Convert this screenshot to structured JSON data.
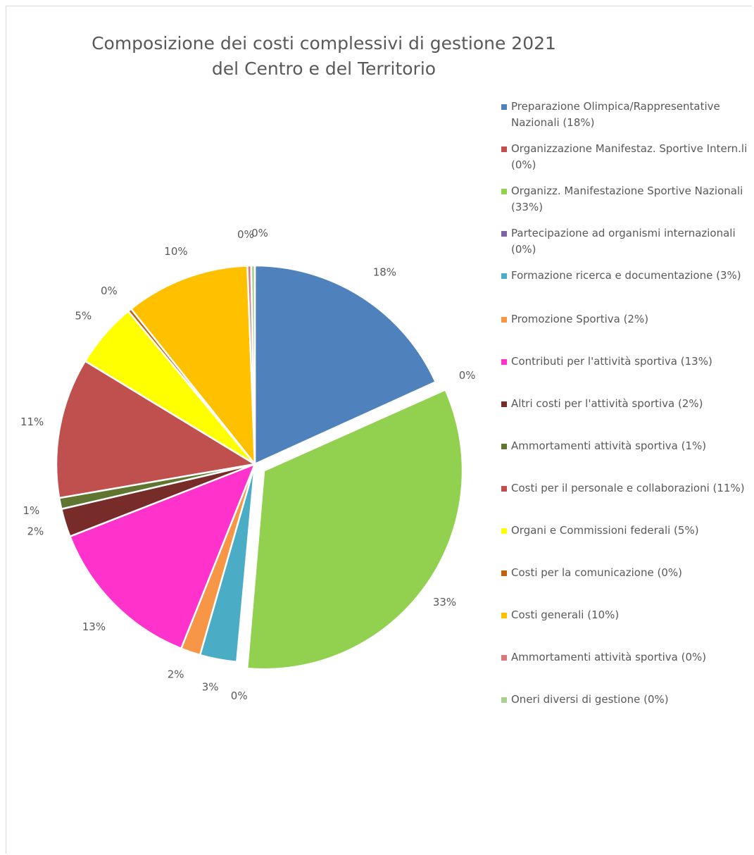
{
  "chart_data": {
    "type": "pie",
    "title_line1": "Composizione dei costi complessivi di gestione 2021",
    "title_line2": "del Centro e del Territorio",
    "legend_position": "right",
    "slices": [
      {
        "label": "Preparazione Olimpica/Rappresentative Nazionali (18%)",
        "value": 18.2,
        "data_label": "18%",
        "color": "#4f81bd",
        "exploded": false
      },
      {
        "label": "Organizzazione Manifestaz. Sportive Intern.li (0%)",
        "value": 0.1,
        "data_label": "0%",
        "color": "#c0504d",
        "exploded": false
      },
      {
        "label": "Organizz. Manifestazione Sportive Nazionali (33%)",
        "value": 33.0,
        "data_label": "33%",
        "color": "#92d050",
        "exploded": true
      },
      {
        "label": "Partecipazione ad organismi internazionali (0%)",
        "value": 0.1,
        "data_label": "0%",
        "color": "#8064a2",
        "exploded": false
      },
      {
        "label": "Formazione ricerca e documentazione (3%)",
        "value": 3.0,
        "data_label": "3%",
        "color": "#4bacc6",
        "exploded": false
      },
      {
        "label": "Promozione Sportiva (2%)",
        "value": 1.6,
        "data_label": "2%",
        "color": "#f79646",
        "exploded": false
      },
      {
        "label": "Contributi per l'attività sportiva (13%)",
        "value": 13.0,
        "data_label": "13%",
        "color": "#ff33cc",
        "exploded": false
      },
      {
        "label": "Altri costi per l'attività sportiva (2%)",
        "value": 2.3,
        "data_label": "2%",
        "color": "#772c2a",
        "exploded": false
      },
      {
        "label": "Ammortamenti attività sportiva (1%)",
        "value": 0.9,
        "data_label": "1%",
        "color": "#5f7530",
        "exploded": false
      },
      {
        "label": "Costi per il personale e collaborazioni (11%)",
        "value": 11.4,
        "data_label": "11%",
        "color": "#c0504d",
        "exploded": false
      },
      {
        "label": "Organi e Commissioni federali (5%)",
        "value": 5.3,
        "data_label": "5%",
        "color": "#ffff00",
        "exploded": false
      },
      {
        "label": "Costi per la comunicazione (0%)",
        "value": 0.3,
        "data_label": "0%",
        "color": "#c0620f",
        "exploded": false
      },
      {
        "label": "Costi generali (10%)",
        "value": 10.1,
        "data_label": "10%",
        "color": "#ffc000",
        "exploded": false
      },
      {
        "label": "Ammortamenti attività sportiva (0%)",
        "value": 0.3,
        "data_label": "0%",
        "color": "#d9797a",
        "exploded": false
      },
      {
        "label": "Oneri diversi di gestione (0%)",
        "value": 0.3,
        "data_label": "0%",
        "color": "#a9d18e",
        "exploded": false
      }
    ]
  }
}
